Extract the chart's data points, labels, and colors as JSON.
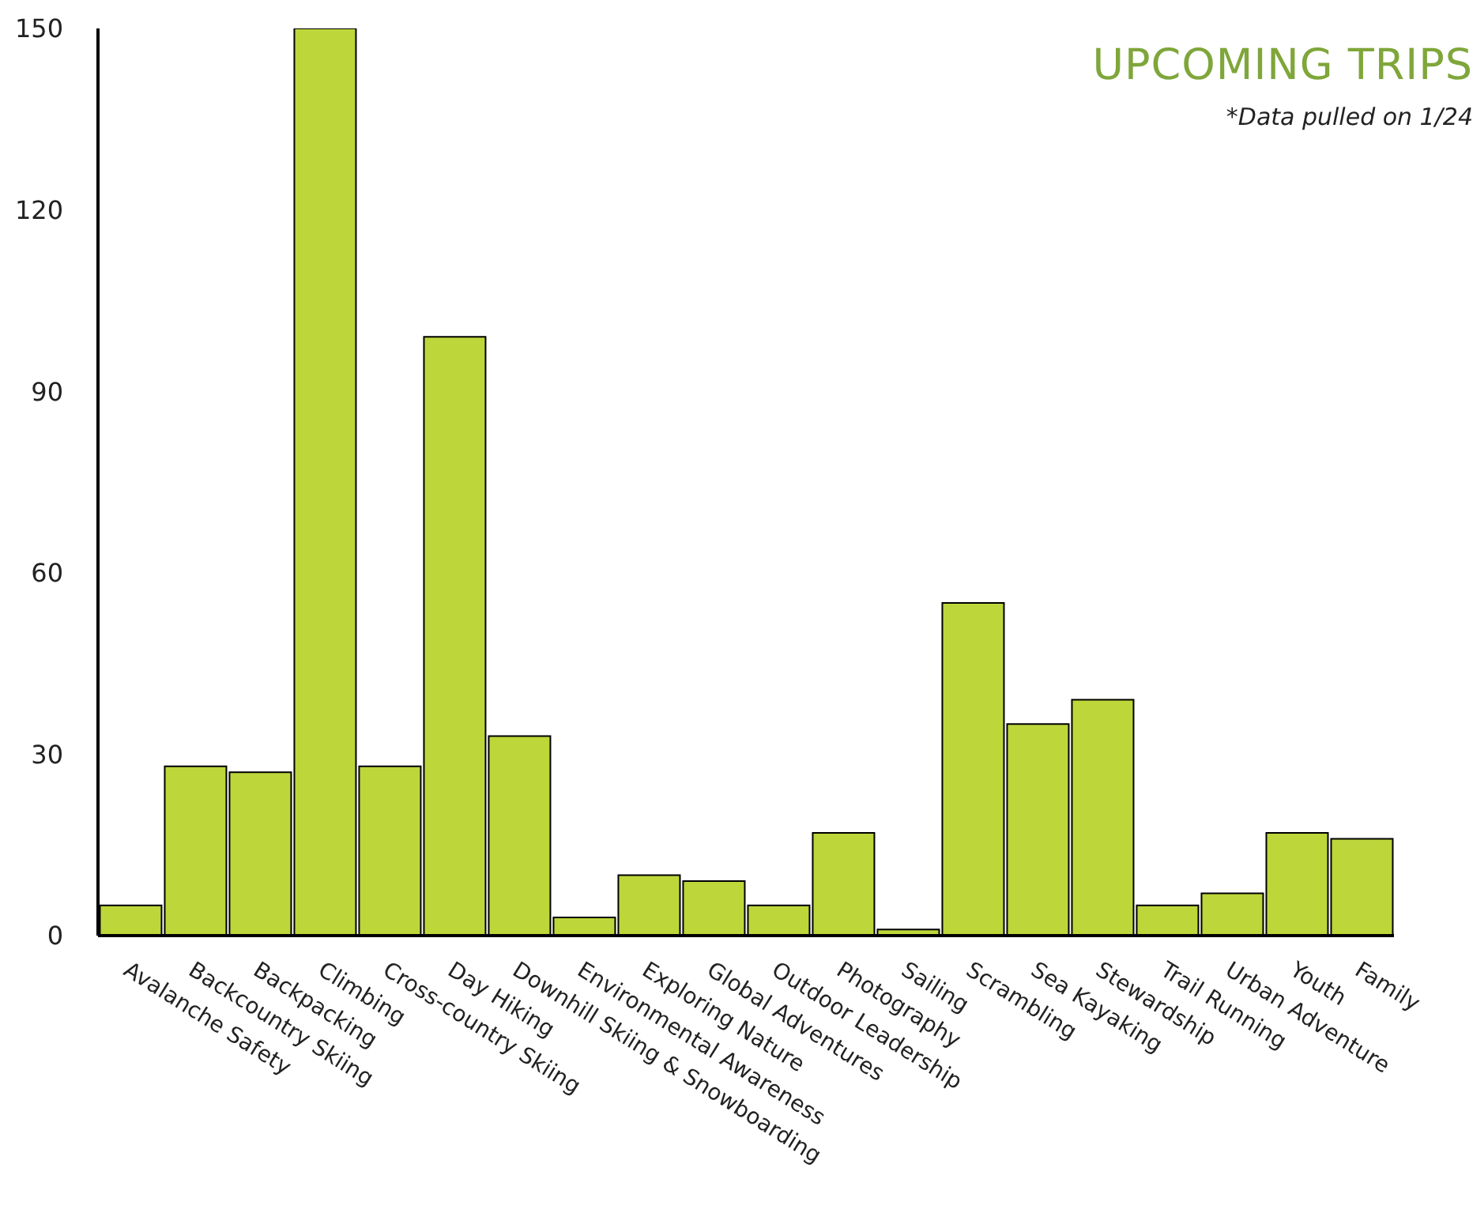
{
  "chart_data": {
    "type": "bar",
    "title": "UPCOMING TRIPS",
    "subtitle": "*Data pulled on 1/24",
    "categories": [
      "Avalanche Safety",
      "Backcountry Skiing",
      "Backpacking",
      "Climbing",
      "Cross-country Skiing",
      "Day Hiking",
      "Downhill Skiing & Snowboarding",
      "Environmental Awareness",
      "Exploring Nature",
      "Global Adventures",
      "Outdoor Leadership",
      "Photography",
      "Sailing",
      "Scrambling",
      "Sea Kayaking",
      "Stewardship",
      "Trail Running",
      "Urban Adventure",
      "Youth",
      "Family"
    ],
    "values": [
      5,
      28,
      27,
      150,
      28,
      99,
      33,
      3,
      10,
      9,
      5,
      17,
      1,
      55,
      35,
      39,
      5,
      7,
      17,
      16
    ],
    "color": "#bdd63a",
    "ylim": [
      0,
      150
    ],
    "yticks": [
      0,
      30,
      60,
      90,
      120,
      150
    ],
    "grid": false,
    "legend": false
  }
}
